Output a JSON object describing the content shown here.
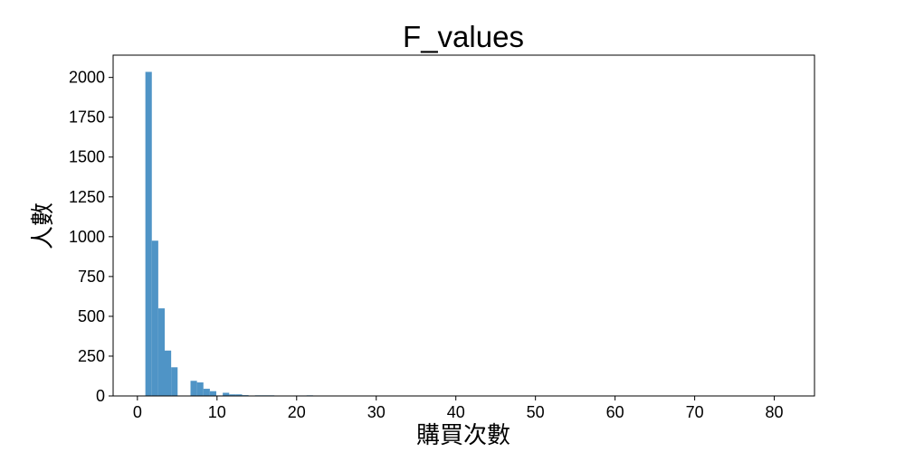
{
  "chart_data": {
    "type": "bar",
    "title": "F_values",
    "xlabel": "購買次數",
    "ylabel": "人數",
    "xlim": [
      -3.05,
      85.05
    ],
    "ylim": [
      0,
      2140
    ],
    "xticks": [
      "0",
      "10",
      "20",
      "30",
      "40",
      "50",
      "60",
      "70",
      "80"
    ],
    "yticks": [
      "0",
      "250",
      "500",
      "750",
      "1000",
      "1250",
      "1500",
      "1750",
      "2000"
    ],
    "bar_color": "#4f94c6",
    "grid": false,
    "bin_width": 0.81,
    "bins": [
      {
        "x": 1.0,
        "value": 2035
      },
      {
        "x": 1.81,
        "value": 975
      },
      {
        "x": 2.62,
        "value": 550
      },
      {
        "x": 3.43,
        "value": 285
      },
      {
        "x": 4.24,
        "value": 180
      },
      {
        "x": 6.67,
        "value": 95
      },
      {
        "x": 7.48,
        "value": 85
      },
      {
        "x": 8.29,
        "value": 45
      },
      {
        "x": 9.1,
        "value": 30
      },
      {
        "x": 9.91,
        "value": 3
      },
      {
        "x": 10.72,
        "value": 20
      },
      {
        "x": 11.53,
        "value": 10
      },
      {
        "x": 12.34,
        "value": 10
      },
      {
        "x": 13.15,
        "value": 5
      },
      {
        "x": 14.77,
        "value": 4
      },
      {
        "x": 15.58,
        "value": 4
      },
      {
        "x": 16.39,
        "value": 4
      },
      {
        "x": 19.63,
        "value": 3
      },
      {
        "x": 20.44,
        "value": 3
      },
      {
        "x": 21.25,
        "value": 4
      },
      {
        "x": 32.59,
        "value": 2
      },
      {
        "x": 44.74,
        "value": 2
      },
      {
        "x": 49.6,
        "value": 2
      },
      {
        "x": 81.19,
        "value": 2
      }
    ]
  }
}
